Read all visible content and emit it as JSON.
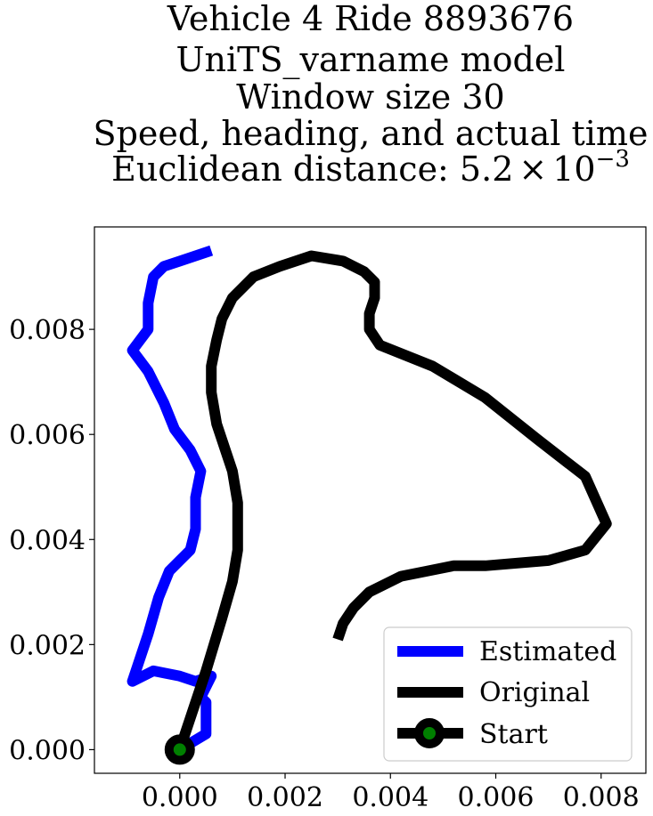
{
  "chart_data": {
    "type": "line",
    "title_lines": [
      "Vehicle 4 Ride 8893676",
      "UniTS_varname model",
      "Window size 30",
      "Speed, heading, and actual time"
    ],
    "title_last_prefix": "Euclidean distance: 5.2",
    "title_last_times": "×",
    "title_last_base": "10",
    "title_last_exponent": "−3",
    "xlim": [
      -0.00162,
      0.00885
    ],
    "ylim": [
      -0.00045,
      0.00995
    ],
    "x_ticks": [
      0.0,
      0.002,
      0.004,
      0.006,
      0.008
    ],
    "x_tick_labels": [
      "0.000",
      "0.002",
      "0.004",
      "0.006",
      "0.008"
    ],
    "y_ticks": [
      0.0,
      0.002,
      0.004,
      0.006,
      0.008
    ],
    "y_tick_labels": [
      "0.000",
      "0.002",
      "0.004",
      "0.006",
      "0.008"
    ],
    "grid": false,
    "legend_placement": "lower-right",
    "series": [
      {
        "name": "Estimated",
        "color": "#0000ff",
        "points": [
          [
            0.0,
            0.0
          ],
          [
            0.0005,
            0.0003
          ],
          [
            0.0005,
            0.0009
          ],
          [
            0.0004,
            0.001
          ],
          [
            0.0006,
            0.0014
          ],
          [
            0.0003,
            0.0013
          ],
          [
            0.0,
            0.0014
          ],
          [
            -0.0005,
            0.0015
          ],
          [
            -0.0009,
            0.0013
          ],
          [
            -0.0008,
            0.0016
          ],
          [
            -0.0006,
            0.0022
          ],
          [
            -0.0004,
            0.0029
          ],
          [
            -0.0002,
            0.0034
          ],
          [
            0.0002,
            0.0038
          ],
          [
            0.0003,
            0.0042
          ],
          [
            0.0003,
            0.0048
          ],
          [
            0.0004,
            0.0053
          ],
          [
            0.0002,
            0.0057
          ],
          [
            -0.0001,
            0.0061
          ],
          [
            -0.0003,
            0.0066
          ],
          [
            -0.0006,
            0.0072
          ],
          [
            -0.0009,
            0.0076
          ],
          [
            -0.0006,
            0.008
          ],
          [
            -0.0006,
            0.0085
          ],
          [
            -0.0005,
            0.009
          ],
          [
            -0.0003,
            0.0092
          ],
          [
            0.0,
            0.0093
          ],
          [
            0.0006,
            0.0095
          ]
        ]
      },
      {
        "name": "Original",
        "color": "#000000",
        "points": [
          [
            0.0,
            0.0
          ],
          [
            0.0002,
            0.0006
          ],
          [
            0.0005,
            0.0015
          ],
          [
            0.0008,
            0.0025
          ],
          [
            0.001,
            0.0032
          ],
          [
            0.0011,
            0.0038
          ],
          [
            0.0011,
            0.0047
          ],
          [
            0.001,
            0.0053
          ],
          [
            0.0007,
            0.0062
          ],
          [
            0.0006,
            0.0068
          ],
          [
            0.0006,
            0.0073
          ],
          [
            0.0007,
            0.0078
          ],
          [
            0.0008,
            0.0082
          ],
          [
            0.001,
            0.0086
          ],
          [
            0.0014,
            0.009
          ],
          [
            0.0019,
            0.0092
          ],
          [
            0.0025,
            0.0094
          ],
          [
            0.0031,
            0.0093
          ],
          [
            0.0035,
            0.0091
          ],
          [
            0.0037,
            0.0089
          ],
          [
            0.0037,
            0.0086
          ],
          [
            0.0036,
            0.0083
          ],
          [
            0.0036,
            0.008
          ],
          [
            0.0038,
            0.0077
          ],
          [
            0.0048,
            0.0073
          ],
          [
            0.0058,
            0.0067
          ],
          [
            0.0068,
            0.0059
          ],
          [
            0.0077,
            0.0052
          ],
          [
            0.0081,
            0.0043
          ],
          [
            0.0077,
            0.0038
          ],
          [
            0.007,
            0.0036
          ],
          [
            0.0058,
            0.0035
          ],
          [
            0.0052,
            0.0035
          ],
          [
            0.0047,
            0.0034
          ],
          [
            0.0042,
            0.0033
          ],
          [
            0.0036,
            0.003
          ],
          [
            0.0033,
            0.0027
          ],
          [
            0.0031,
            0.0024
          ],
          [
            0.003,
            0.0021
          ]
        ]
      }
    ],
    "start_marker": {
      "name": "Start",
      "x": 0.0,
      "y": 0.0,
      "face_color": "#008000",
      "edge_color": "#000000"
    }
  }
}
